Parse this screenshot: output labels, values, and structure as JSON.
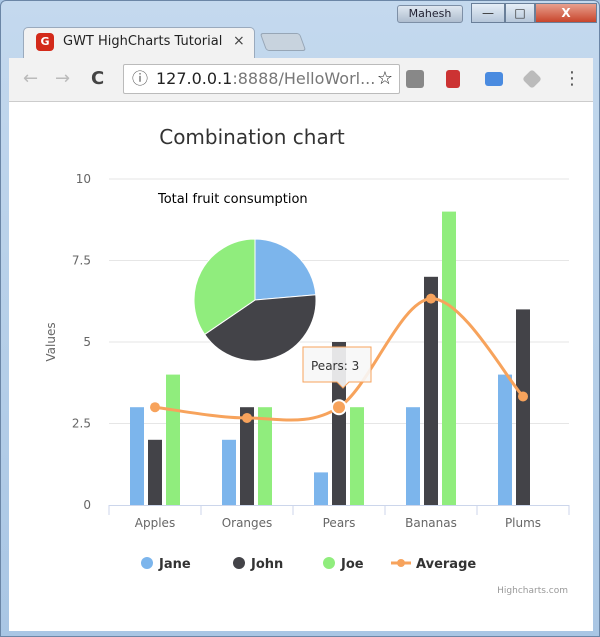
{
  "browser": {
    "user": "Mahesh",
    "tab_title": "GWT HighCharts Tutorial",
    "url_host": "127.0.0.1",
    "url_rest": ":8888/HelloWorl...",
    "favicon": "G",
    "close": "×",
    "min": "—",
    "max": "□",
    "closewin": "X",
    "back": "←",
    "forward": "→",
    "reload": "C",
    "info": "ⓘ",
    "star": "☆",
    "menu": "⋮"
  },
  "chart_data": {
    "type": "bar",
    "title": "Combination chart",
    "ylabel": "Values",
    "xlabel": "",
    "categories": [
      "Apples",
      "Oranges",
      "Pears",
      "Bananas",
      "Plums"
    ],
    "ylim": [
      0,
      10
    ],
    "yticks": [
      "0",
      "2.5",
      "5",
      "7.5",
      "10"
    ],
    "grid": true,
    "legend_placement": "bottom",
    "series": [
      {
        "name": "Jane",
        "type": "column",
        "color": "#7cb5ec",
        "values": [
          3,
          2,
          1,
          3,
          4
        ]
      },
      {
        "name": "John",
        "type": "column",
        "color": "#434348",
        "values": [
          2,
          3,
          5,
          7,
          6
        ]
      },
      {
        "name": "Joe",
        "type": "column",
        "color": "#90ed7d",
        "values": [
          4,
          3,
          3,
          9,
          0
        ]
      },
      {
        "name": "Average",
        "type": "spline",
        "color": "#f7a35c",
        "values": [
          3,
          2.67,
          3,
          6.33,
          3.33
        ]
      }
    ],
    "pie": {
      "title": "Total fruit consumption",
      "slices": [
        {
          "name": "Jane",
          "value": 13,
          "color": "#7cb5ec"
        },
        {
          "name": "John",
          "value": 23,
          "color": "#434348"
        },
        {
          "name": "Joe",
          "value": 19,
          "color": "#90ed7d"
        }
      ]
    },
    "tooltip": "Pears: 3",
    "credits": "Highcharts.com"
  }
}
